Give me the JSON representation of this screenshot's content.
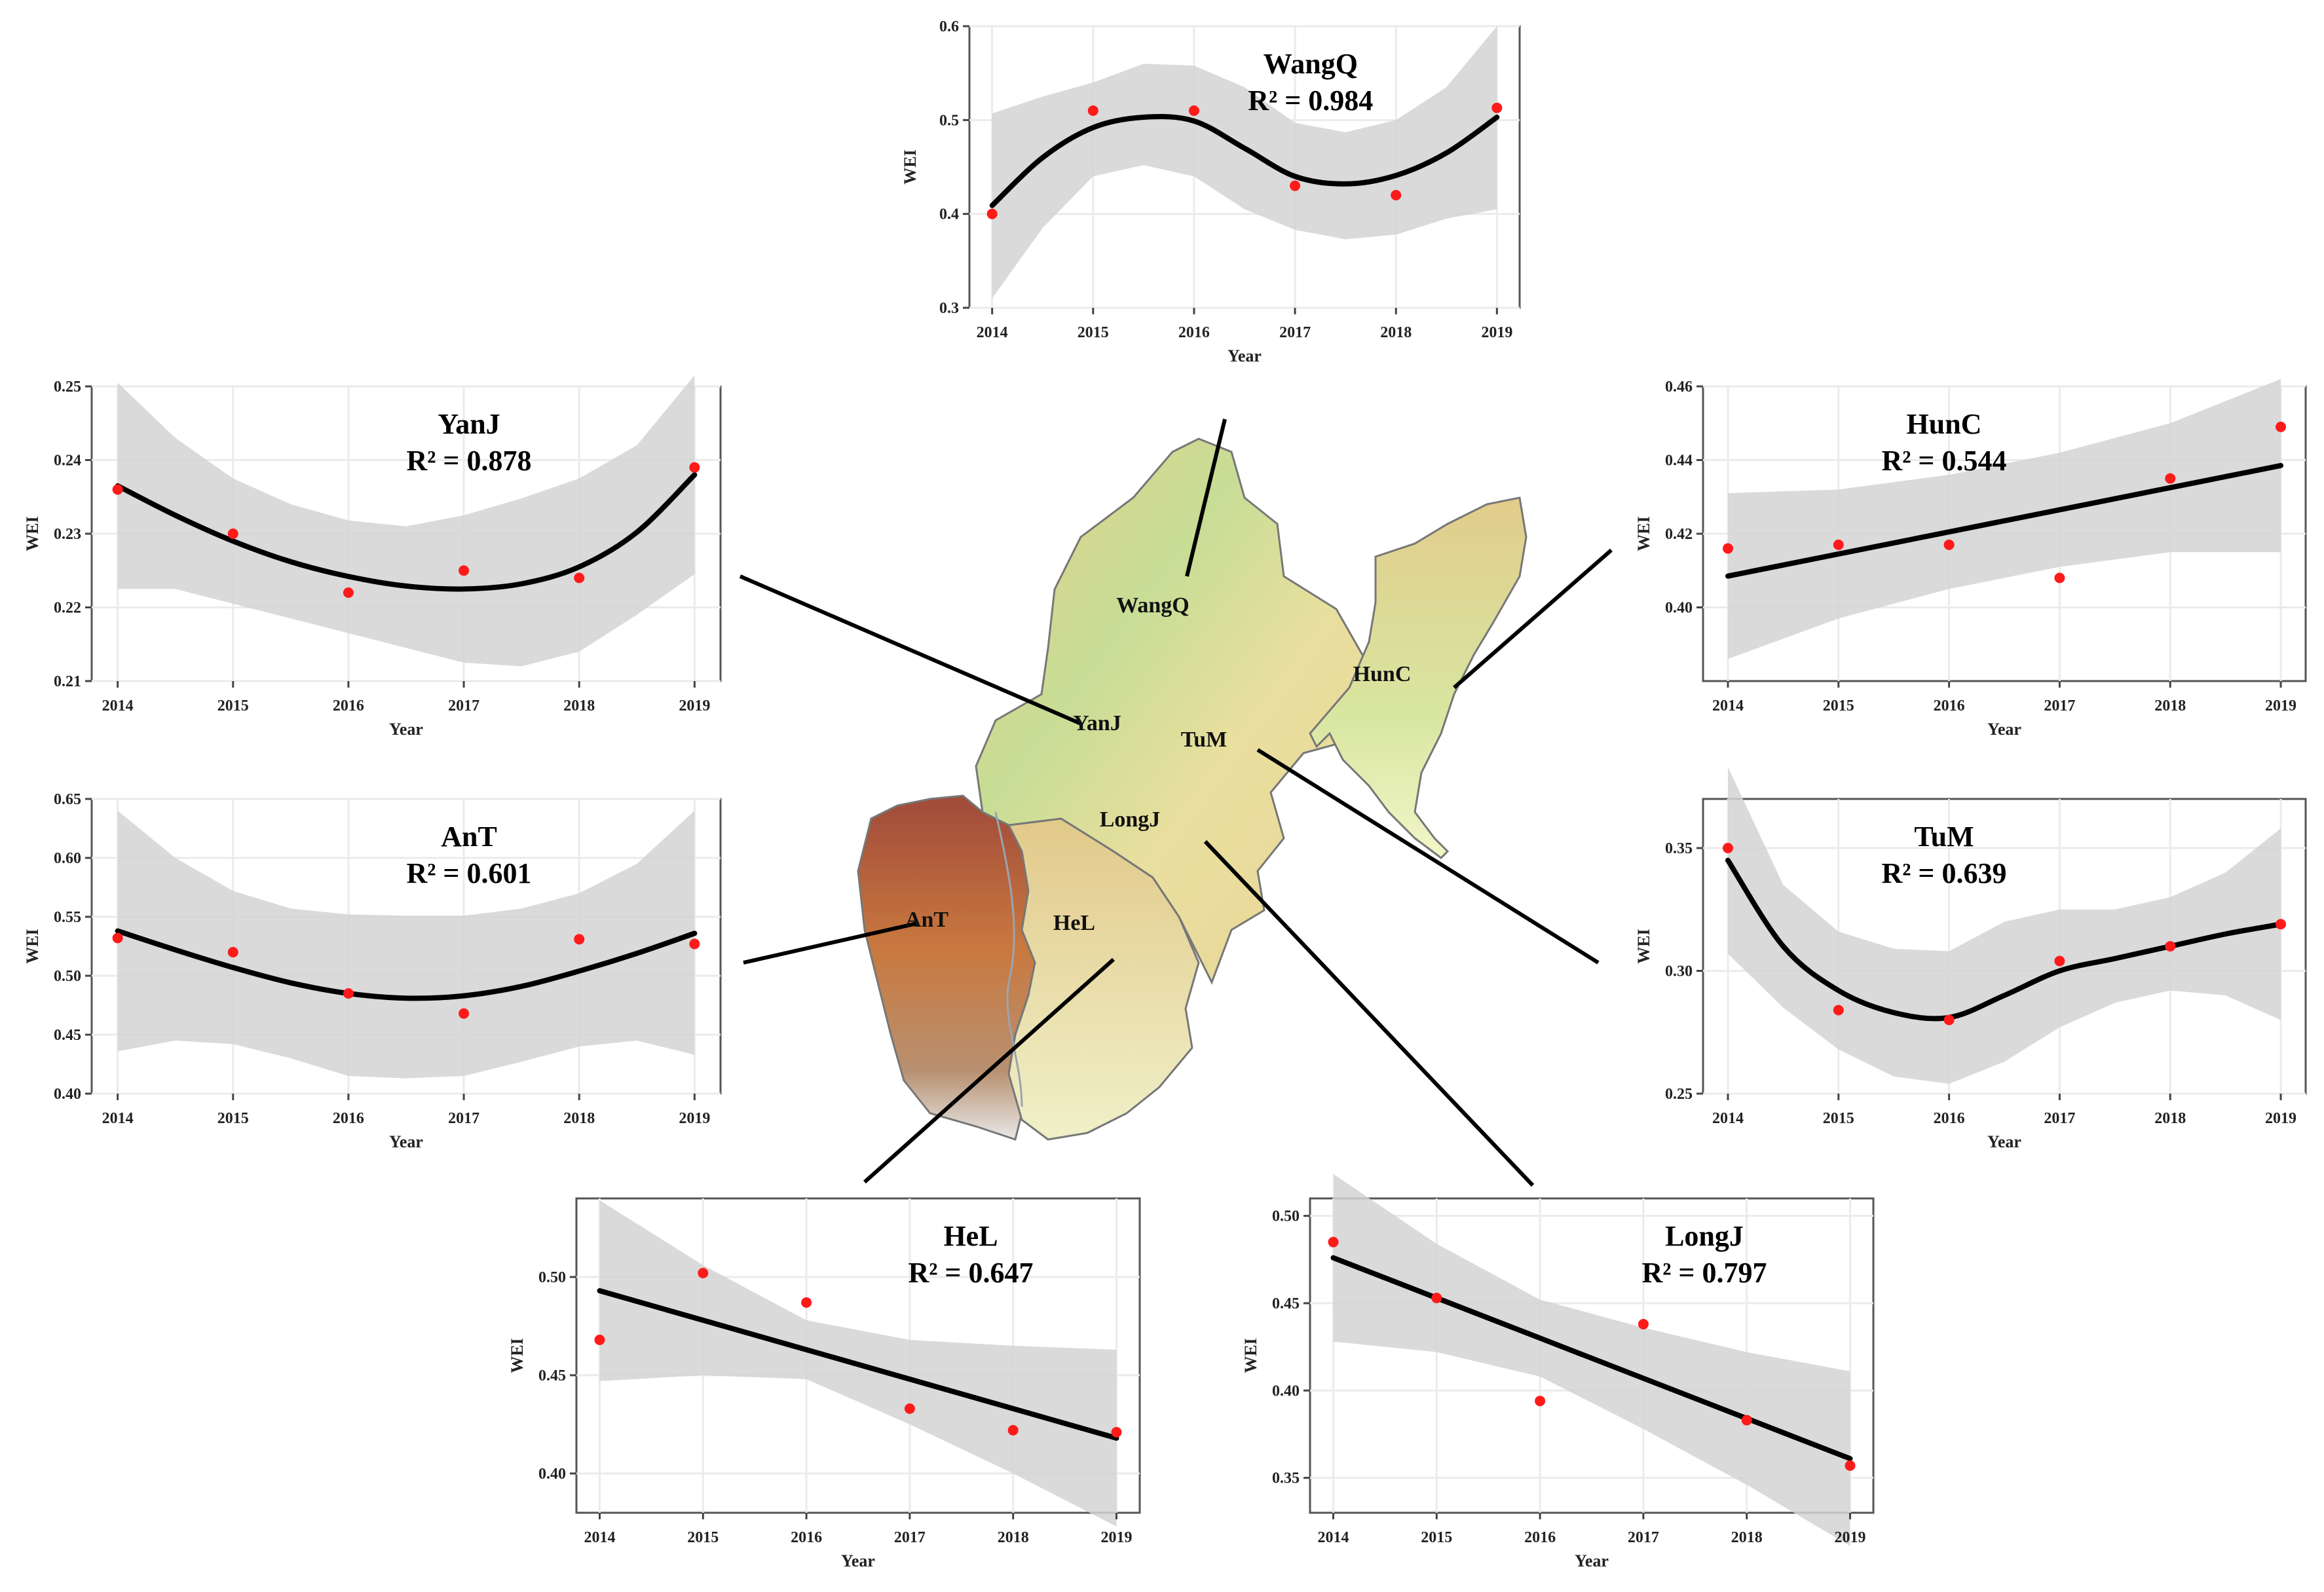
{
  "figure": {
    "region_labels": [
      "WangQ",
      "HunC",
      "YanJ",
      "TuM",
      "LongJ",
      "AnT",
      "HeL"
    ],
    "colors": {
      "point": "#ff1a1a",
      "line": "#000000",
      "band": "#d4d4d4",
      "grid": "#ebebeb",
      "connector": "#000000"
    }
  },
  "chart_data": [
    {
      "id": "WangQ",
      "type": "scatter",
      "fit": "smooth",
      "name": "WangQ",
      "r2_text": "R² = 0.984",
      "xlabel": "Year",
      "ylabel": "WEI",
      "x": [
        2014,
        2015,
        2016,
        2017,
        2018,
        2019
      ],
      "points": [
        0.4,
        0.51,
        0.51,
        0.43,
        0.42,
        0.513
      ],
      "fit_x": [
        2014,
        2014.5,
        2015,
        2015.5,
        2016,
        2016.5,
        2017,
        2017.5,
        2018,
        2018.5,
        2019
      ],
      "fit_y": [
        0.409,
        0.46,
        0.492,
        0.503,
        0.499,
        0.47,
        0.44,
        0.432,
        0.441,
        0.465,
        0.503
      ],
      "band_lo": [
        0.31,
        0.385,
        0.44,
        0.452,
        0.44,
        0.405,
        0.383,
        0.373,
        0.378,
        0.395,
        0.405
      ],
      "band_hi": [
        0.507,
        0.525,
        0.54,
        0.56,
        0.558,
        0.535,
        0.497,
        0.487,
        0.5,
        0.535,
        0.6
      ],
      "ylim": [
        0.3,
        0.6
      ],
      "yticks": [
        0.3,
        0.4,
        0.5,
        0.6
      ],
      "ytick_labels": [
        "0.3",
        "0.4",
        "0.5",
        "0.6"
      ]
    },
    {
      "id": "YanJ",
      "type": "scatter",
      "fit": "smooth",
      "name": "YanJ",
      "r2_text": "R² = 0.878",
      "xlabel": "Year",
      "ylabel": "WEI",
      "x": [
        2014,
        2015,
        2016,
        2017,
        2018,
        2019
      ],
      "points": [
        0.236,
        0.23,
        0.222,
        0.225,
        0.224,
        0.239
      ],
      "fit_x": [
        2014,
        2014.5,
        2015,
        2015.5,
        2016,
        2016.5,
        2017,
        2017.5,
        2018,
        2018.5,
        2019
      ],
      "fit_y": [
        0.2365,
        0.2325,
        0.229,
        0.2262,
        0.2242,
        0.2229,
        0.2225,
        0.2232,
        0.2255,
        0.2302,
        0.238
      ],
      "band_lo": [
        0.2225,
        0.2225,
        0.2205,
        0.2185,
        0.2165,
        0.2145,
        0.2125,
        0.212,
        0.214,
        0.219,
        0.2245
      ],
      "band_hi": [
        0.2505,
        0.243,
        0.2375,
        0.234,
        0.2318,
        0.231,
        0.2325,
        0.2348,
        0.2375,
        0.242,
        0.2515
      ],
      "ylim": [
        0.21,
        0.25
      ],
      "yticks": [
        0.21,
        0.22,
        0.23,
        0.24,
        0.25
      ],
      "ytick_labels": [
        "0.21",
        "0.22",
        "0.23",
        "0.24",
        "0.25"
      ]
    },
    {
      "id": "AnT",
      "type": "scatter",
      "fit": "smooth",
      "name": "AnT",
      "r2_text": "R² = 0.601",
      "xlabel": "Year",
      "ylabel": "WEI",
      "x": [
        2014,
        2015,
        2016,
        2017,
        2018,
        2019
      ],
      "points": [
        0.532,
        0.52,
        0.485,
        0.468,
        0.531,
        0.527
      ],
      "fit_x": [
        2014,
        2014.5,
        2015,
        2015.5,
        2016,
        2016.5,
        2017,
        2017.5,
        2018,
        2018.5,
        2019
      ],
      "fit_y": [
        0.538,
        0.522,
        0.507,
        0.494,
        0.485,
        0.481,
        0.483,
        0.491,
        0.504,
        0.519,
        0.536
      ],
      "band_lo": [
        0.436,
        0.445,
        0.442,
        0.43,
        0.415,
        0.413,
        0.415,
        0.427,
        0.44,
        0.445,
        0.433
      ],
      "band_hi": [
        0.64,
        0.6,
        0.572,
        0.557,
        0.552,
        0.551,
        0.551,
        0.557,
        0.57,
        0.595,
        0.64
      ],
      "ylim": [
        0.4,
        0.65
      ],
      "yticks": [
        0.4,
        0.45,
        0.5,
        0.55,
        0.6,
        0.65
      ],
      "ytick_labels": [
        "0.40",
        "0.45",
        "0.50",
        "0.55",
        "0.60",
        "0.65"
      ]
    },
    {
      "id": "HunC",
      "type": "scatter",
      "fit": "linear",
      "name": "HunC",
      "r2_text": "R² = 0.544",
      "xlabel": "Year",
      "ylabel": "WEI",
      "x": [
        2014,
        2015,
        2016,
        2017,
        2018,
        2019
      ],
      "points": [
        0.416,
        0.417,
        0.417,
        0.408,
        0.435,
        0.449
      ],
      "fit_x": [
        2014,
        2015,
        2016,
        2017,
        2018,
        2019
      ],
      "fit_y": [
        0.4085,
        0.4145,
        0.4205,
        0.4265,
        0.4325,
        0.4385
      ],
      "band_lo": [
        0.386,
        0.397,
        0.405,
        0.411,
        0.415,
        0.415
      ],
      "band_hi": [
        0.431,
        0.432,
        0.436,
        0.442,
        0.45,
        0.462
      ],
      "ylim": [
        0.38,
        0.46
      ],
      "yticks": [
        0.4,
        0.42,
        0.44,
        0.46
      ],
      "ytick_labels": [
        "0.40",
        "0.42",
        "0.44",
        "0.46"
      ]
    },
    {
      "id": "TuM",
      "type": "scatter",
      "fit": "smooth",
      "name": "TuM",
      "r2_text": "R² = 0.639",
      "xlabel": "Year",
      "ylabel": "WEI",
      "x": [
        2014,
        2015,
        2016,
        2017,
        2018,
        2019
      ],
      "points": [
        0.35,
        0.284,
        0.28,
        0.304,
        0.31,
        0.319
      ],
      "fit_x": [
        2014,
        2014.5,
        2015,
        2015.5,
        2016,
        2016.5,
        2017,
        2017.5,
        2018,
        2018.5,
        2019
      ],
      "fit_y": [
        0.345,
        0.31,
        0.292,
        0.283,
        0.281,
        0.29,
        0.3,
        0.305,
        0.31,
        0.315,
        0.319
      ],
      "band_lo": [
        0.307,
        0.285,
        0.268,
        0.257,
        0.254,
        0.263,
        0.277,
        0.287,
        0.292,
        0.29,
        0.28
      ],
      "band_hi": [
        0.383,
        0.335,
        0.316,
        0.309,
        0.308,
        0.32,
        0.325,
        0.325,
        0.33,
        0.34,
        0.358
      ],
      "ylim": [
        0.25,
        0.37
      ],
      "yticks": [
        0.25,
        0.3,
        0.35
      ],
      "ytick_labels": [
        "0.25",
        "0.30",
        "0.35"
      ]
    },
    {
      "id": "HeL",
      "type": "scatter",
      "fit": "linear",
      "name": "HeL",
      "r2_text": "R² = 0.647",
      "xlabel": "Year",
      "ylabel": "WEI",
      "x": [
        2014,
        2015,
        2016,
        2017,
        2018,
        2019
      ],
      "points": [
        0.468,
        0.502,
        0.487,
        0.433,
        0.422,
        0.421
      ],
      "fit_x": [
        2014,
        2015,
        2016,
        2017,
        2018,
        2019
      ],
      "fit_y": [
        0.493,
        0.478,
        0.463,
        0.448,
        0.433,
        0.418
      ],
      "band_lo": [
        0.447,
        0.45,
        0.448,
        0.425,
        0.4,
        0.373
      ],
      "band_hi": [
        0.539,
        0.506,
        0.478,
        0.468,
        0.465,
        0.463
      ],
      "ylim": [
        0.38,
        0.54
      ],
      "yticks": [
        0.4,
        0.45,
        0.5
      ],
      "ytick_labels": [
        "0.40",
        "0.45",
        "0.50"
      ]
    },
    {
      "id": "LongJ",
      "type": "scatter",
      "fit": "linear",
      "name": "LongJ",
      "r2_text": "R² = 0.797",
      "xlabel": "Year",
      "ylabel": "WEI",
      "x": [
        2014,
        2015,
        2016,
        2017,
        2018,
        2019
      ],
      "points": [
        0.485,
        0.453,
        0.394,
        0.438,
        0.383,
        0.357
      ],
      "fit_x": [
        2014,
        2015,
        2016,
        2017,
        2018,
        2019
      ],
      "fit_y": [
        0.476,
        0.453,
        0.43,
        0.407,
        0.384,
        0.361
      ],
      "band_lo": [
        0.428,
        0.422,
        0.408,
        0.378,
        0.346,
        0.311
      ],
      "band_hi": [
        0.524,
        0.484,
        0.452,
        0.436,
        0.422,
        0.411
      ],
      "ylim": [
        0.33,
        0.51
      ],
      "yticks": [
        0.35,
        0.4,
        0.45,
        0.5
      ],
      "ytick_labels": [
        "0.35",
        "0.40",
        "0.45",
        "0.50"
      ]
    }
  ]
}
